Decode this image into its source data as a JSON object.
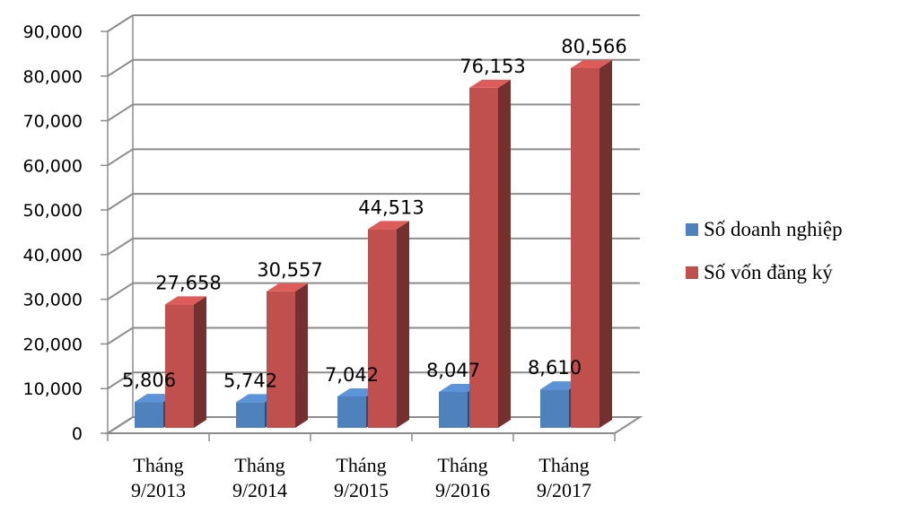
{
  "chart_data": {
    "type": "bar",
    "categories": [
      [
        "Tháng",
        "9/2013"
      ],
      [
        "Tháng",
        "9/2014"
      ],
      [
        "Tháng",
        "9/2015"
      ],
      [
        "Tháng",
        "9/2016"
      ],
      [
        "Tháng",
        "9/2017"
      ]
    ],
    "series": [
      {
        "name": "Số doanh nghiệp",
        "values": [
          5806,
          5742,
          7042,
          8047,
          8610
        ],
        "labels": [
          "5,806",
          "5,742",
          "7,042",
          "8,047",
          "8,610"
        ],
        "color": "#4F81BD"
      },
      {
        "name": "Số vốn đăng ký",
        "values": [
          27658,
          30557,
          44513,
          76153,
          80566
        ],
        "labels": [
          "27,658",
          "30,557",
          "44,513",
          "76,153",
          "80,566"
        ],
        "color": "#C0504D"
      }
    ],
    "yticks": [
      "0",
      "10,000",
      "20,000",
      "30,000",
      "40,000",
      "50,000",
      "60,000",
      "70,000",
      "80,000",
      "90,000"
    ],
    "ylim": [
      0,
      90000
    ],
    "grid": true,
    "legend": "right",
    "style": "3d-clustered"
  }
}
